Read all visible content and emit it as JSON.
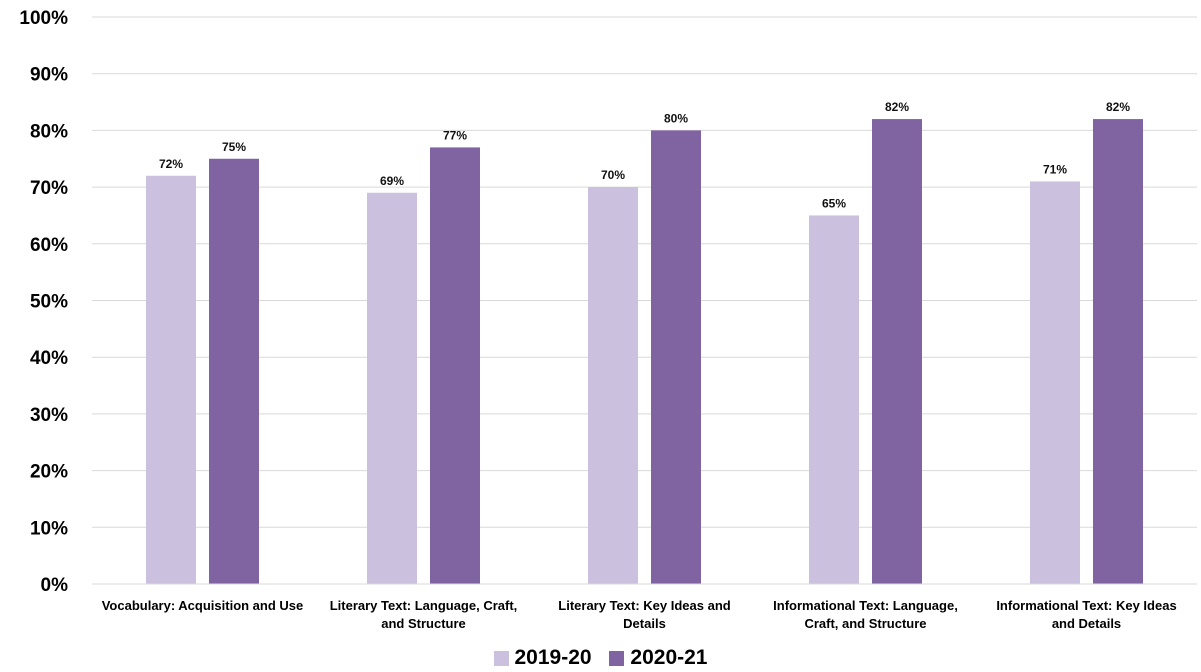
{
  "chart_data": {
    "type": "bar",
    "categories": [
      "Vocabulary: Acquisition and Use",
      "Literary Text: Language, Craft, and Structure",
      "Literary Text: Key Ideas and Details",
      "Informational Text: Language, Craft, and Structure",
      "Informational Text: Key Ideas and Details"
    ],
    "category_lines": [
      [
        "Vocabulary: Acquisition and Use"
      ],
      [
        "Literary Text: Language, Craft,",
        "and Structure"
      ],
      [
        "Literary Text: Key Ideas and",
        "Details"
      ],
      [
        "Informational Text: Language,",
        "Craft, and Structure"
      ],
      [
        "Informational Text: Key Ideas",
        "and Details"
      ]
    ],
    "series": [
      {
        "name": "2019-20",
        "values": [
          72,
          69,
          70,
          65,
          71
        ],
        "labels": [
          "72%",
          "69%",
          "70%",
          "65%",
          "71%"
        ],
        "color": "#cbc1de"
      },
      {
        "name": "2020-21",
        "values": [
          75,
          77,
          80,
          82,
          82
        ],
        "labels": [
          "75%",
          "77%",
          "80%",
          "82%",
          "82%"
        ],
        "color": "#8064a2"
      }
    ],
    "ylim": [
      0,
      100
    ],
    "yticks": [
      "0%",
      "10%",
      "20%",
      "30%",
      "40%",
      "50%",
      "60%",
      "70%",
      "80%",
      "90%",
      "100%"
    ],
    "grid": true,
    "legend_position": "bottom-center",
    "title": "",
    "xlabel": "",
    "ylabel": ""
  }
}
